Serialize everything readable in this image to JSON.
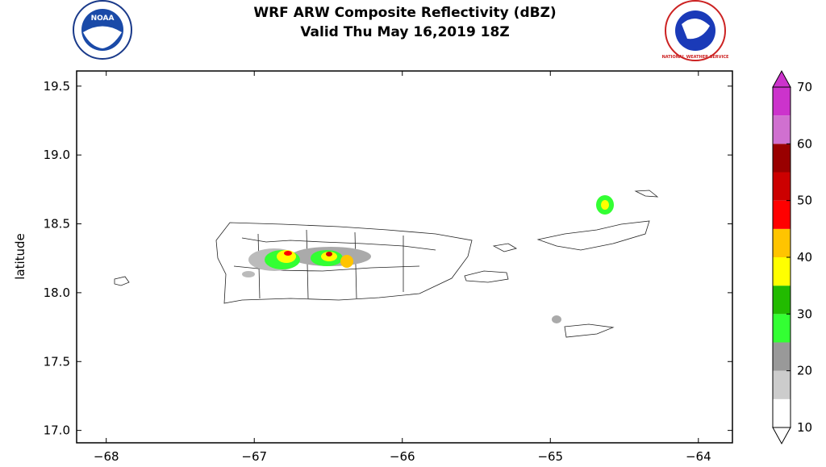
{
  "chart_data": {
    "type": "map",
    "title": "WRF ARW Composite Reflectivity (dBZ)",
    "subtitle": "Valid Thu May 16,2019 18Z",
    "y_label": "latitude",
    "logos": [
      "NOAA",
      "NATIONAL WEATHER SERVICE"
    ],
    "xlim": [
      -68.2,
      -63.77
    ],
    "ylim": [
      16.91,
      19.61
    ],
    "xticks": [
      {
        "value": -68,
        "label": "−68"
      },
      {
        "value": -67,
        "label": "−67"
      },
      {
        "value": -66,
        "label": "−66"
      },
      {
        "value": -65,
        "label": "−65"
      },
      {
        "value": -64,
        "label": "−64"
      }
    ],
    "yticks": [
      {
        "value": 17,
        "label": "17.0"
      },
      17.5,
      {
        "value": 18,
        "label": "18.0"
      },
      18.5,
      {
        "value": 19,
        "label": "19.0"
      },
      19.5
    ],
    "colorbar": {
      "levels": [
        10,
        15,
        20,
        25,
        30,
        35,
        40,
        45,
        50,
        55,
        60,
        65,
        70
      ],
      "colors": [
        "#ffffff",
        "#cccccc",
        "#999999",
        "#33ff33",
        "#22bb00",
        "#ffff00",
        "#ffc400",
        "#ff0000",
        "#cc0000",
        "#990000",
        "#d070d0",
        "#cc33cc"
      ],
      "ticks": [
        10,
        20,
        30,
        40,
        50,
        60,
        70
      ]
    }
  }
}
